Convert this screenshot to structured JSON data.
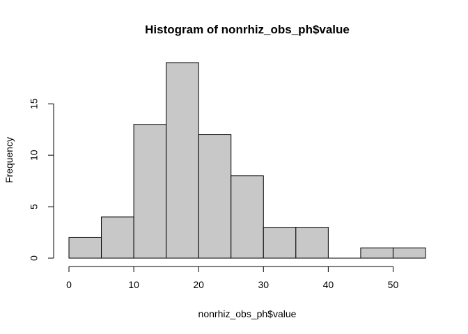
{
  "chart_data": {
    "type": "bar",
    "title": "Histogram of nonrhiz_obs_ph$value",
    "xlabel": "nonrhiz_obs_ph$value",
    "ylabel": "Frequency",
    "bins": [
      {
        "start": 0,
        "end": 5,
        "count": 2
      },
      {
        "start": 5,
        "end": 10,
        "count": 4
      },
      {
        "start": 10,
        "end": 15,
        "count": 13
      },
      {
        "start": 15,
        "end": 20,
        "count": 19
      },
      {
        "start": 20,
        "end": 25,
        "count": 12
      },
      {
        "start": 25,
        "end": 30,
        "count": 8
      },
      {
        "start": 30,
        "end": 35,
        "count": 3
      },
      {
        "start": 35,
        "end": 40,
        "count": 3
      },
      {
        "start": 40,
        "end": 45,
        "count": 0
      },
      {
        "start": 45,
        "end": 50,
        "count": 1
      },
      {
        "start": 50,
        "end": 55,
        "count": 1
      }
    ],
    "xlim": [
      0,
      55
    ],
    "ylim": [
      0,
      19
    ],
    "xticks": [
      0,
      10,
      20,
      30,
      40,
      50
    ],
    "yticks": [
      0,
      5,
      10,
      15
    ],
    "grid": false,
    "bar_fill": "#c8c8c8",
    "bar_stroke": "#000000"
  }
}
